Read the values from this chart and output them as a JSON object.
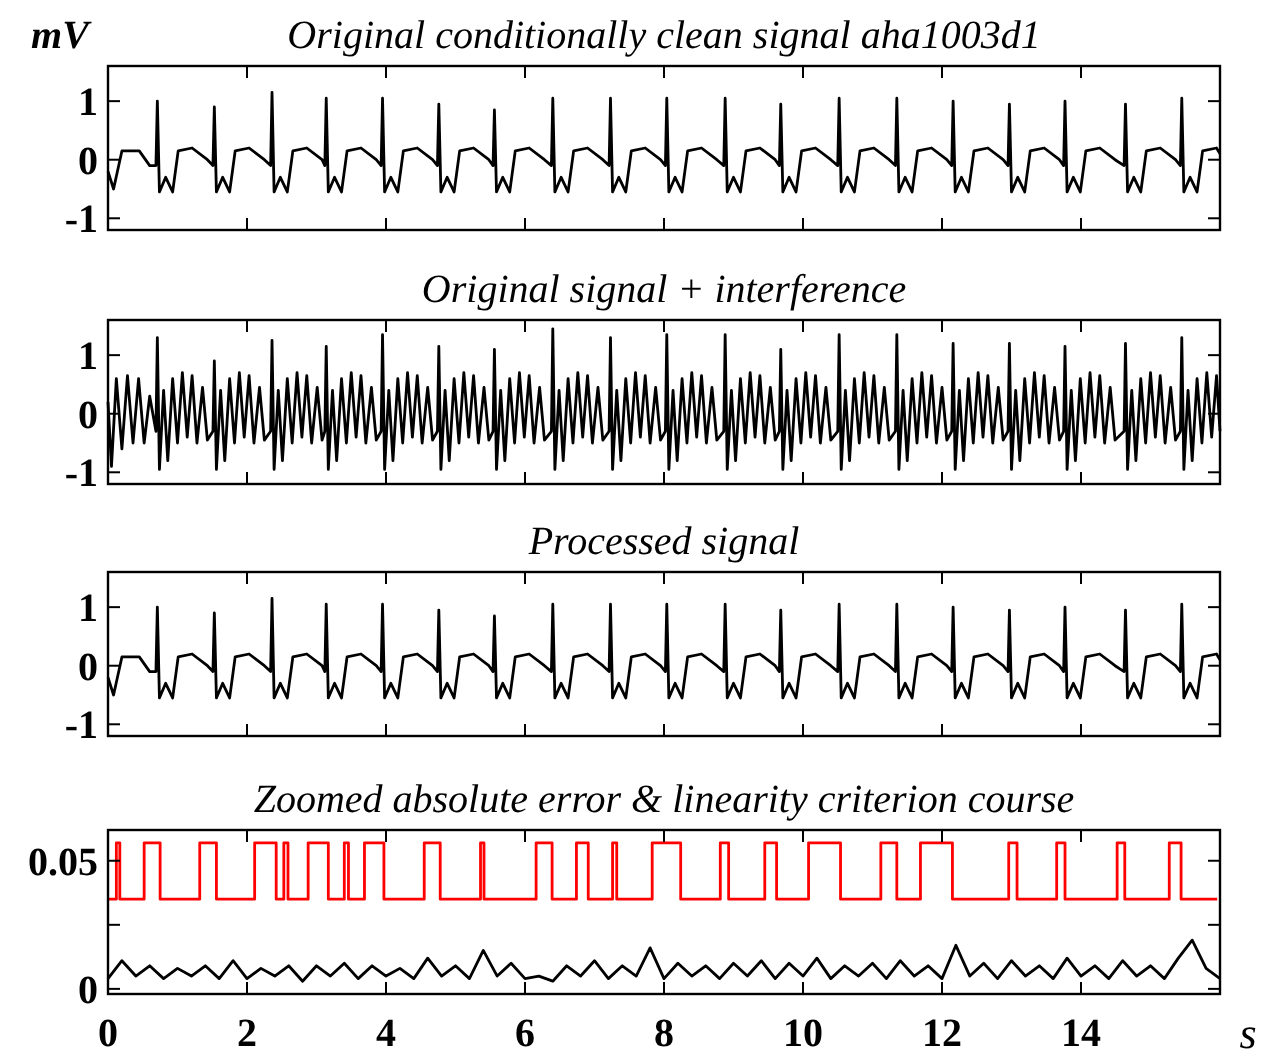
{
  "chart_data": [
    {
      "type": "line",
      "title": "Original conditionally clean signal aha1003d1",
      "ylabel": "mV",
      "xlim": [
        0,
        16
      ],
      "xticks": [
        0,
        2,
        4,
        6,
        8,
        10,
        12,
        14
      ],
      "ylim": [
        -1.2,
        1.6
      ],
      "yticks": [
        -1,
        0,
        1
      ],
      "tick_labels": "y",
      "x": [
        0,
        0.08,
        0.2,
        0.45,
        0.6,
        0.69,
        0.71,
        0.74,
        0.83,
        0.93,
        1.01,
        1.21,
        1.43,
        1.51,
        1.53,
        1.56,
        1.65,
        1.75,
        1.83,
        2.03,
        2.25,
        2.34,
        2.36,
        2.39,
        2.48,
        2.58,
        2.66,
        2.86,
        3.08,
        3.12,
        3.14,
        3.17,
        3.26,
        3.36,
        3.44,
        3.64,
        3.86,
        3.93,
        3.95,
        3.98,
        4.07,
        4.17,
        4.25,
        4.45,
        4.67,
        4.74,
        4.76,
        4.79,
        4.88,
        4.98,
        5.06,
        5.26,
        5.48,
        5.54,
        5.56,
        5.59,
        5.68,
        5.78,
        5.86,
        6.06,
        6.28,
        6.38,
        6.4,
        6.43,
        6.52,
        6.62,
        6.7,
        6.9,
        7.12,
        7.21,
        7.23,
        7.26,
        7.35,
        7.45,
        7.53,
        7.73,
        7.95,
        8.02,
        8.04,
        8.07,
        8.16,
        8.26,
        8.34,
        8.54,
        8.76,
        8.86,
        8.88,
        8.91,
        9.0,
        9.1,
        9.18,
        9.38,
        9.6,
        9.66,
        9.68,
        9.71,
        9.8,
        9.9,
        9.98,
        10.18,
        10.4,
        10.5,
        10.52,
        10.55,
        10.64,
        10.74,
        10.82,
        11.02,
        11.24,
        11.33,
        11.35,
        11.38,
        11.47,
        11.57,
        11.65,
        11.85,
        12.07,
        12.14,
        12.16,
        12.19,
        12.28,
        12.38,
        12.46,
        12.66,
        12.88,
        12.95,
        12.97,
        13.0,
        13.09,
        13.19,
        13.27,
        13.47,
        13.69,
        13.75,
        13.77,
        13.8,
        13.89,
        13.99,
        14.07,
        14.27,
        14.49,
        14.62,
        14.64,
        14.67,
        14.76,
        14.86,
        14.94,
        15.14,
        15.36,
        15.43,
        15.45,
        15.48,
        15.57,
        15.67,
        15.75,
        15.95,
        16
      ],
      "series": [
        {
          "color": "#000000",
          "values": [
            -0.2,
            -0.5,
            0.15,
            0.15,
            -0.1,
            -0.1,
            1.0,
            -0.55,
            -0.3,
            -0.55,
            0.15,
            0.2,
            0.0,
            -0.1,
            0.9,
            -0.55,
            -0.3,
            -0.55,
            0.15,
            0.2,
            0.0,
            -0.1,
            1.15,
            -0.55,
            -0.3,
            -0.55,
            0.15,
            0.2,
            0.0,
            -0.1,
            1.05,
            -0.55,
            -0.3,
            -0.55,
            0.15,
            0.2,
            0.0,
            -0.1,
            1.05,
            -0.55,
            -0.3,
            -0.55,
            0.15,
            0.2,
            0.0,
            -0.1,
            0.95,
            -0.55,
            -0.3,
            -0.55,
            0.15,
            0.2,
            0.0,
            -0.1,
            0.85,
            -0.55,
            -0.3,
            -0.55,
            0.15,
            0.2,
            0.0,
            -0.1,
            1.05,
            -0.55,
            -0.3,
            -0.55,
            0.15,
            0.2,
            0.0,
            -0.1,
            1.05,
            -0.55,
            -0.3,
            -0.55,
            0.15,
            0.2,
            0.0,
            -0.1,
            1.05,
            -0.55,
            -0.3,
            -0.55,
            0.15,
            0.2,
            0.0,
            -0.1,
            1.05,
            -0.55,
            -0.3,
            -0.55,
            0.15,
            0.2,
            0.0,
            -0.1,
            0.95,
            -0.55,
            -0.3,
            -0.55,
            0.15,
            0.2,
            0.0,
            -0.1,
            1.05,
            -0.55,
            -0.3,
            -0.55,
            0.15,
            0.2,
            0.0,
            -0.1,
            1.05,
            -0.55,
            -0.3,
            -0.55,
            0.15,
            0.2,
            0.0,
            -0.1,
            1.0,
            -0.55,
            -0.3,
            -0.55,
            0.15,
            0.2,
            0.0,
            -0.1,
            0.95,
            -0.55,
            -0.3,
            -0.55,
            0.15,
            0.2,
            0.0,
            -0.1,
            1.0,
            -0.55,
            -0.3,
            -0.55,
            0.15,
            0.2,
            0.0,
            -0.1,
            0.95,
            -0.55,
            -0.3,
            -0.55,
            0.15,
            0.2,
            0.0,
            -0.1,
            1.05,
            -0.55,
            -0.3,
            -0.55,
            0.15,
            0.2,
            0.1
          ]
        }
      ]
    },
    {
      "type": "line",
      "title": "Original signal + interference",
      "xlim": [
        0,
        16
      ],
      "xticks": [
        0,
        2,
        4,
        6,
        8,
        10,
        12,
        14
      ],
      "ylim": [
        -1.2,
        1.6
      ],
      "yticks": [
        -1,
        0,
        1
      ],
      "tick_labels": "y",
      "x": [
        0,
        0.05,
        0.12,
        0.2,
        0.28,
        0.36,
        0.44,
        0.52,
        0.6,
        0.69,
        0.71,
        0.74,
        0.8,
        0.86,
        0.93,
        1.0,
        1.07,
        1.14,
        1.21,
        1.28,
        1.36,
        1.43,
        1.51,
        1.53,
        1.56,
        1.62,
        1.68,
        1.75,
        1.82,
        1.89,
        1.96,
        2.03,
        2.1,
        2.18,
        2.25,
        2.34,
        2.36,
        2.39,
        2.45,
        2.51,
        2.58,
        2.65,
        2.72,
        2.79,
        2.86,
        2.93,
        3.01,
        3.08,
        3.12,
        3.14,
        3.17,
        3.23,
        3.29,
        3.36,
        3.43,
        3.5,
        3.57,
        3.64,
        3.71,
        3.79,
        3.86,
        3.93,
        3.95,
        3.98,
        4.04,
        4.1,
        4.17,
        4.24,
        4.31,
        4.38,
        4.45,
        4.52,
        4.6,
        4.67,
        4.74,
        4.76,
        4.79,
        4.85,
        4.91,
        4.98,
        5.05,
        5.12,
        5.19,
        5.26,
        5.33,
        5.41,
        5.48,
        5.54,
        5.56,
        5.59,
        5.65,
        5.71,
        5.78,
        5.85,
        5.92,
        5.99,
        6.06,
        6.13,
        6.21,
        6.28,
        6.38,
        6.4,
        6.43,
        6.49,
        6.55,
        6.62,
        6.69,
        6.76,
        6.83,
        6.9,
        6.97,
        7.05,
        7.12,
        7.21,
        7.23,
        7.26,
        7.32,
        7.38,
        7.45,
        7.52,
        7.59,
        7.66,
        7.73,
        7.8,
        7.88,
        7.95,
        8.02,
        8.04,
        8.07,
        8.13,
        8.19,
        8.26,
        8.33,
        8.4,
        8.47,
        8.54,
        8.61,
        8.69,
        8.76,
        8.86,
        8.88,
        8.91,
        8.97,
        9.03,
        9.1,
        9.17,
        9.24,
        9.31,
        9.38,
        9.45,
        9.53,
        9.6,
        9.66,
        9.68,
        9.71,
        9.77,
        9.83,
        9.9,
        9.97,
        10.04,
        10.11,
        10.18,
        10.25,
        10.33,
        10.4,
        10.5,
        10.52,
        10.55,
        10.61,
        10.67,
        10.74,
        10.81,
        10.88,
        10.95,
        11.02,
        11.09,
        11.17,
        11.24,
        11.33,
        11.35,
        11.38,
        11.44,
        11.5,
        11.57,
        11.64,
        11.71,
        11.78,
        11.85,
        11.92,
        12.0,
        12.07,
        12.14,
        12.16,
        12.19,
        12.25,
        12.31,
        12.38,
        12.45,
        12.52,
        12.59,
        12.66,
        12.73,
        12.81,
        12.88,
        12.95,
        12.97,
        13.0,
        13.06,
        13.12,
        13.19,
        13.26,
        13.33,
        13.4,
        13.47,
        13.54,
        13.62,
        13.69,
        13.75,
        13.77,
        13.8,
        13.86,
        13.92,
        13.99,
        14.06,
        14.13,
        14.2,
        14.27,
        14.34,
        14.42,
        14.49,
        14.62,
        14.64,
        14.67,
        14.73,
        14.79,
        14.86,
        14.93,
        15.0,
        15.07,
        15.14,
        15.21,
        15.29,
        15.36,
        15.43,
        15.45,
        15.48,
        15.54,
        15.6,
        15.67,
        15.74,
        15.81,
        15.88,
        15.95,
        16
      ],
      "series": [
        {
          "color": "#000000",
          "values": [
            0.2,
            -0.9,
            0.6,
            -0.6,
            0.65,
            -0.5,
            0.6,
            -0.5,
            0.3,
            -0.3,
            1.3,
            -0.95,
            0.4,
            -0.8,
            0.6,
            -0.5,
            0.7,
            -0.4,
            0.65,
            -0.5,
            0.45,
            -0.45,
            -0.3,
            0.9,
            -0.95,
            0.4,
            -0.8,
            0.6,
            -0.5,
            0.7,
            -0.4,
            0.65,
            -0.5,
            0.45,
            -0.45,
            -0.3,
            1.25,
            -0.95,
            0.4,
            -0.8,
            0.6,
            -0.5,
            0.7,
            -0.4,
            0.65,
            -0.5,
            0.45,
            -0.45,
            -0.3,
            1.15,
            -0.95,
            0.4,
            -0.8,
            0.6,
            -0.5,
            0.7,
            -0.4,
            0.65,
            -0.5,
            0.45,
            -0.45,
            -0.3,
            1.35,
            -0.95,
            0.4,
            -0.8,
            0.6,
            -0.5,
            0.7,
            -0.4,
            0.65,
            -0.5,
            0.45,
            -0.45,
            -0.3,
            1.15,
            -0.95,
            0.4,
            -0.8,
            0.6,
            -0.5,
            0.7,
            -0.4,
            0.65,
            -0.5,
            0.45,
            -0.45,
            -0.3,
            1.1,
            -0.95,
            0.4,
            -0.8,
            0.6,
            -0.5,
            0.7,
            -0.4,
            0.65,
            -0.5,
            0.45,
            -0.45,
            -0.3,
            1.45,
            -0.95,
            0.4,
            -0.8,
            0.6,
            -0.5,
            0.7,
            -0.4,
            0.65,
            -0.5,
            0.45,
            -0.45,
            -0.3,
            1.3,
            -0.95,
            0.4,
            -0.8,
            0.6,
            -0.5,
            0.7,
            -0.4,
            0.65,
            -0.5,
            0.45,
            -0.45,
            -0.3,
            1.35,
            -0.95,
            0.4,
            -0.8,
            0.6,
            -0.5,
            0.7,
            -0.4,
            0.65,
            -0.5,
            0.45,
            -0.45,
            -0.3,
            1.35,
            -0.95,
            0.4,
            -0.8,
            0.6,
            -0.5,
            0.7,
            -0.4,
            0.65,
            -0.5,
            0.45,
            -0.45,
            -0.3,
            1.1,
            -0.95,
            0.4,
            -0.8,
            0.6,
            -0.5,
            0.7,
            -0.4,
            0.65,
            -0.5,
            0.45,
            -0.45,
            -0.3,
            1.35,
            -0.95,
            0.4,
            -0.8,
            0.6,
            -0.5,
            0.7,
            -0.4,
            0.65,
            -0.5,
            0.45,
            -0.45,
            -0.3,
            1.35,
            -0.95,
            0.4,
            -0.8,
            0.6,
            -0.5,
            0.7,
            -0.4,
            0.65,
            -0.5,
            0.45,
            -0.45,
            -0.3,
            1.2,
            -0.95,
            0.4,
            -0.8,
            0.6,
            -0.5,
            0.7,
            -0.4,
            0.65,
            -0.5,
            0.45,
            -0.45,
            -0.3,
            1.2,
            -0.95,
            0.4,
            -0.8,
            0.6,
            -0.5,
            0.7,
            -0.4,
            0.65,
            -0.5,
            0.45,
            -0.45,
            -0.3,
            1.15,
            -0.95,
            0.4,
            -0.8,
            0.6,
            -0.5,
            0.7,
            -0.4,
            0.65,
            -0.5,
            0.45,
            -0.45,
            -0.3,
            1.2,
            -0.95,
            0.4,
            -0.8,
            0.6,
            -0.5,
            0.7,
            -0.4,
            0.65,
            -0.5,
            0.45,
            -0.45,
            -0.3,
            1.3,
            -0.95,
            0.4,
            -0.8,
            0.6,
            -0.5,
            0.7,
            -0.4,
            0.65,
            -0.3
          ]
        }
      ]
    },
    {
      "type": "line",
      "title": "Processed signal",
      "xlim": [
        0,
        16
      ],
      "xticks": [
        0,
        2,
        4,
        6,
        8,
        10,
        12,
        14
      ],
      "ylim": [
        -1.2,
        1.6
      ],
      "yticks": [
        -1,
        0,
        1
      ],
      "tick_labels": "y",
      "x": [
        0,
        0.08,
        0.2,
        0.45,
        0.6,
        0.69,
        0.71,
        0.74,
        0.83,
        0.93,
        1.01,
        1.21,
        1.43,
        1.51,
        1.53,
        1.56,
        1.65,
        1.75,
        1.83,
        2.03,
        2.25,
        2.34,
        2.36,
        2.39,
        2.48,
        2.58,
        2.66,
        2.86,
        3.08,
        3.12,
        3.14,
        3.17,
        3.26,
        3.36,
        3.44,
        3.64,
        3.86,
        3.93,
        3.95,
        3.98,
        4.07,
        4.17,
        4.25,
        4.45,
        4.67,
        4.74,
        4.76,
        4.79,
        4.88,
        4.98,
        5.06,
        5.26,
        5.48,
        5.54,
        5.56,
        5.59,
        5.68,
        5.78,
        5.86,
        6.06,
        6.28,
        6.38,
        6.4,
        6.43,
        6.52,
        6.62,
        6.7,
        6.9,
        7.12,
        7.21,
        7.23,
        7.26,
        7.35,
        7.45,
        7.53,
        7.73,
        7.95,
        8.02,
        8.04,
        8.07,
        8.16,
        8.26,
        8.34,
        8.54,
        8.76,
        8.86,
        8.88,
        8.91,
        9.0,
        9.1,
        9.18,
        9.38,
        9.6,
        9.66,
        9.68,
        9.71,
        9.8,
        9.9,
        9.98,
        10.18,
        10.4,
        10.5,
        10.52,
        10.55,
        10.64,
        10.74,
        10.82,
        11.02,
        11.24,
        11.33,
        11.35,
        11.38,
        11.47,
        11.57,
        11.65,
        11.85,
        12.07,
        12.14,
        12.16,
        12.19,
        12.28,
        12.38,
        12.46,
        12.66,
        12.88,
        12.95,
        12.97,
        13.0,
        13.09,
        13.19,
        13.27,
        13.47,
        13.69,
        13.75,
        13.77,
        13.8,
        13.89,
        13.99,
        14.07,
        14.27,
        14.49,
        14.62,
        14.64,
        14.67,
        14.76,
        14.86,
        14.94,
        15.14,
        15.36,
        15.43,
        15.45,
        15.48,
        15.57,
        15.67,
        15.75,
        15.95,
        16
      ],
      "series": [
        {
          "color": "#000000",
          "values": [
            -0.2,
            -0.5,
            0.15,
            0.15,
            -0.1,
            -0.1,
            1.0,
            -0.55,
            -0.3,
            -0.55,
            0.15,
            0.2,
            0.0,
            -0.1,
            0.9,
            -0.55,
            -0.3,
            -0.55,
            0.15,
            0.2,
            0.0,
            -0.1,
            1.15,
            -0.55,
            -0.3,
            -0.55,
            0.15,
            0.2,
            0.0,
            -0.1,
            1.05,
            -0.55,
            -0.3,
            -0.55,
            0.15,
            0.2,
            0.0,
            -0.1,
            1.05,
            -0.55,
            -0.3,
            -0.55,
            0.15,
            0.2,
            0.0,
            -0.1,
            0.95,
            -0.55,
            -0.3,
            -0.55,
            0.15,
            0.2,
            0.0,
            -0.1,
            0.85,
            -0.55,
            -0.3,
            -0.55,
            0.15,
            0.2,
            0.0,
            -0.1,
            1.05,
            -0.55,
            -0.3,
            -0.55,
            0.15,
            0.2,
            0.0,
            -0.1,
            1.05,
            -0.55,
            -0.3,
            -0.55,
            0.15,
            0.2,
            0.0,
            -0.1,
            1.05,
            -0.55,
            -0.3,
            -0.55,
            0.15,
            0.2,
            0.0,
            -0.1,
            1.05,
            -0.55,
            -0.3,
            -0.55,
            0.15,
            0.2,
            0.0,
            -0.1,
            0.95,
            -0.55,
            -0.3,
            -0.55,
            0.15,
            0.2,
            0.0,
            -0.1,
            1.05,
            -0.55,
            -0.3,
            -0.55,
            0.15,
            0.2,
            0.0,
            -0.1,
            1.05,
            -0.55,
            -0.3,
            -0.55,
            0.15,
            0.2,
            0.0,
            -0.1,
            1.0,
            -0.55,
            -0.3,
            -0.55,
            0.15,
            0.2,
            0.0,
            -0.1,
            0.95,
            -0.55,
            -0.3,
            -0.55,
            0.15,
            0.2,
            0.0,
            -0.1,
            1.0,
            -0.55,
            -0.3,
            -0.55,
            0.15,
            0.2,
            0.0,
            -0.1,
            0.95,
            -0.55,
            -0.3,
            -0.55,
            0.15,
            0.2,
            0.0,
            -0.1,
            1.05,
            -0.55,
            -0.3,
            -0.55,
            0.15,
            0.2,
            0.1
          ]
        }
      ]
    },
    {
      "type": "step",
      "title": "Zoomed absolute error & linearity criterion course",
      "xlabel": "s",
      "xlim": [
        0,
        16
      ],
      "xticks": [
        0,
        2,
        4,
        6,
        8,
        10,
        12,
        14
      ],
      "ylim": [
        -0.002,
        0.062
      ],
      "yticks": [
        0,
        {
          "value": 0.025,
          "label": null
        },
        0.05
      ],
      "series": [
        {
          "color": "#ff0000",
          "x": [
            0,
            0.12,
            0.17,
            0.52,
            0.75,
            1.32,
            1.56,
            2.11,
            2.42,
            2.53,
            2.59,
            2.88,
            3.17,
            3.4,
            3.46,
            3.69,
            3.97,
            4.55,
            4.78,
            5.36,
            5.41,
            6.16,
            6.39,
            6.74,
            6.91,
            7.26,
            7.32,
            7.83,
            8.24,
            8.81,
            8.93,
            9.45,
            9.62,
            10.08,
            10.54,
            11.12,
            11.35,
            11.69,
            12.15,
            12.96,
            13.08,
            13.65,
            13.77,
            14.52,
            14.63,
            15.27,
            15.44,
            15.96
          ],
          "values": [
            0.035,
            0.057,
            0.035,
            0.057,
            0.035,
            0.057,
            0.035,
            0.057,
            0.035,
            0.057,
            0.035,
            0.057,
            0.035,
            0.057,
            0.035,
            0.057,
            0.035,
            0.057,
            0.035,
            0.057,
            0.035,
            0.057,
            0.035,
            0.057,
            0.035,
            0.057,
            0.035,
            0.057,
            0.035,
            0.057,
            0.035,
            0.057,
            0.035,
            0.057,
            0.035,
            0.057,
            0.035,
            0.057,
            0.035,
            0.057,
            0.035,
            0.057,
            0.035,
            0.057,
            0.035,
            0.057,
            0.035,
            0.035
          ]
        },
        {
          "type": "line",
          "color": "#000000",
          "x": [
            0,
            0.2,
            0.4,
            0.6,
            0.8,
            1,
            1.2,
            1.4,
            1.6,
            1.8,
            2,
            2.2,
            2.4,
            2.6,
            2.8,
            3,
            3.2,
            3.4,
            3.6,
            3.8,
            4,
            4.2,
            4.4,
            4.6,
            4.8,
            5,
            5.2,
            5.4,
            5.6,
            5.8,
            6,
            6.2,
            6.4,
            6.6,
            6.8,
            7,
            7.2,
            7.4,
            7.6,
            7.8,
            8,
            8.2,
            8.4,
            8.6,
            8.8,
            9,
            9.2,
            9.4,
            9.6,
            9.8,
            10,
            10.2,
            10.4,
            10.6,
            10.8,
            11,
            11.2,
            11.4,
            11.6,
            11.8,
            12,
            12.2,
            12.4,
            12.6,
            12.8,
            13,
            13.2,
            13.4,
            13.6,
            13.8,
            14,
            14.2,
            14.4,
            14.6,
            14.8,
            15,
            15.2,
            15.4,
            15.6,
            15.8,
            16
          ],
          "values": [
            0.004,
            0.011,
            0.005,
            0.009,
            0.004,
            0.008,
            0.005,
            0.009,
            0.004,
            0.011,
            0.004,
            0.008,
            0.005,
            0.009,
            0.003,
            0.009,
            0.005,
            0.01,
            0.004,
            0.009,
            0.005,
            0.008,
            0.004,
            0.012,
            0.005,
            0.009,
            0.004,
            0.015,
            0.005,
            0.01,
            0.004,
            0.005,
            0.003,
            0.009,
            0.005,
            0.011,
            0.004,
            0.009,
            0.005,
            0.016,
            0.004,
            0.01,
            0.005,
            0.009,
            0.004,
            0.01,
            0.005,
            0.011,
            0.004,
            0.01,
            0.005,
            0.012,
            0.004,
            0.009,
            0.005,
            0.01,
            0.004,
            0.011,
            0.005,
            0.009,
            0.004,
            0.017,
            0.005,
            0.01,
            0.004,
            0.011,
            0.005,
            0.009,
            0.004,
            0.012,
            0.005,
            0.009,
            0.004,
            0.011,
            0.005,
            0.009,
            0.004,
            0.012,
            0.019,
            0.008,
            0.004
          ]
        }
      ]
    }
  ]
}
